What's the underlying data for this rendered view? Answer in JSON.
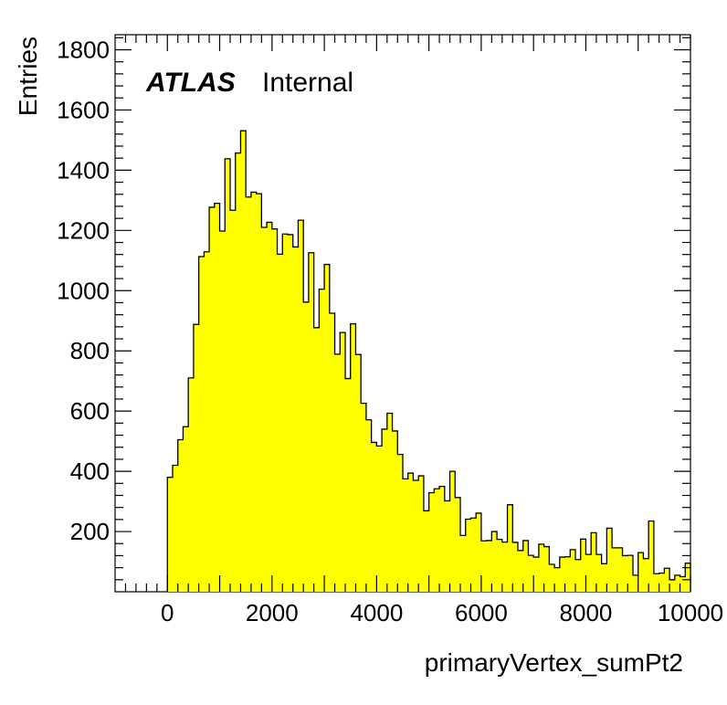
{
  "chart_data": {
    "type": "histogram",
    "xlabel": "primaryVertex_sumPt2",
    "ylabel": "Entries",
    "xlim": [
      -1000,
      10000
    ],
    "ylim": [
      0,
      1850
    ],
    "x_ticks": [
      0,
      2000,
      4000,
      6000,
      8000,
      10000
    ],
    "y_ticks": [
      200,
      400,
      600,
      800,
      1000,
      1200,
      1400,
      1600,
      1800
    ],
    "annotation": {
      "atlas": "ATLAS",
      "label": "Internal"
    },
    "fill_color": "#ffff00",
    "line_color": "#000000",
    "bin_start": 0,
    "bin_width": 100,
    "values": [
      380,
      420,
      505,
      548,
      710,
      888,
      1113,
      1129,
      1277,
      1290,
      1198,
      1438,
      1267,
      1457,
      1531,
      1311,
      1327,
      1322,
      1210,
      1227,
      1205,
      1121,
      1188,
      1186,
      1145,
      1234,
      962,
      1126,
      877,
      1005,
      1087,
      925,
      789,
      861,
      708,
      890,
      788,
      626,
      571,
      496,
      484,
      540,
      593,
      534,
      456,
      375,
      394,
      370,
      385,
      269,
      329,
      342,
      350,
      302,
      400,
      313,
      187,
      241,
      245,
      261,
      169,
      170,
      200,
      174,
      165,
      289,
      164,
      137,
      170,
      121,
      115,
      158,
      150,
      91,
      80,
      115,
      116,
      140,
      107,
      175,
      124,
      196,
      124,
      93,
      211,
      146,
      146,
      120,
      121,
      55,
      130,
      110,
      235,
      60,
      62,
      78,
      40,
      55,
      50,
      95
    ]
  }
}
